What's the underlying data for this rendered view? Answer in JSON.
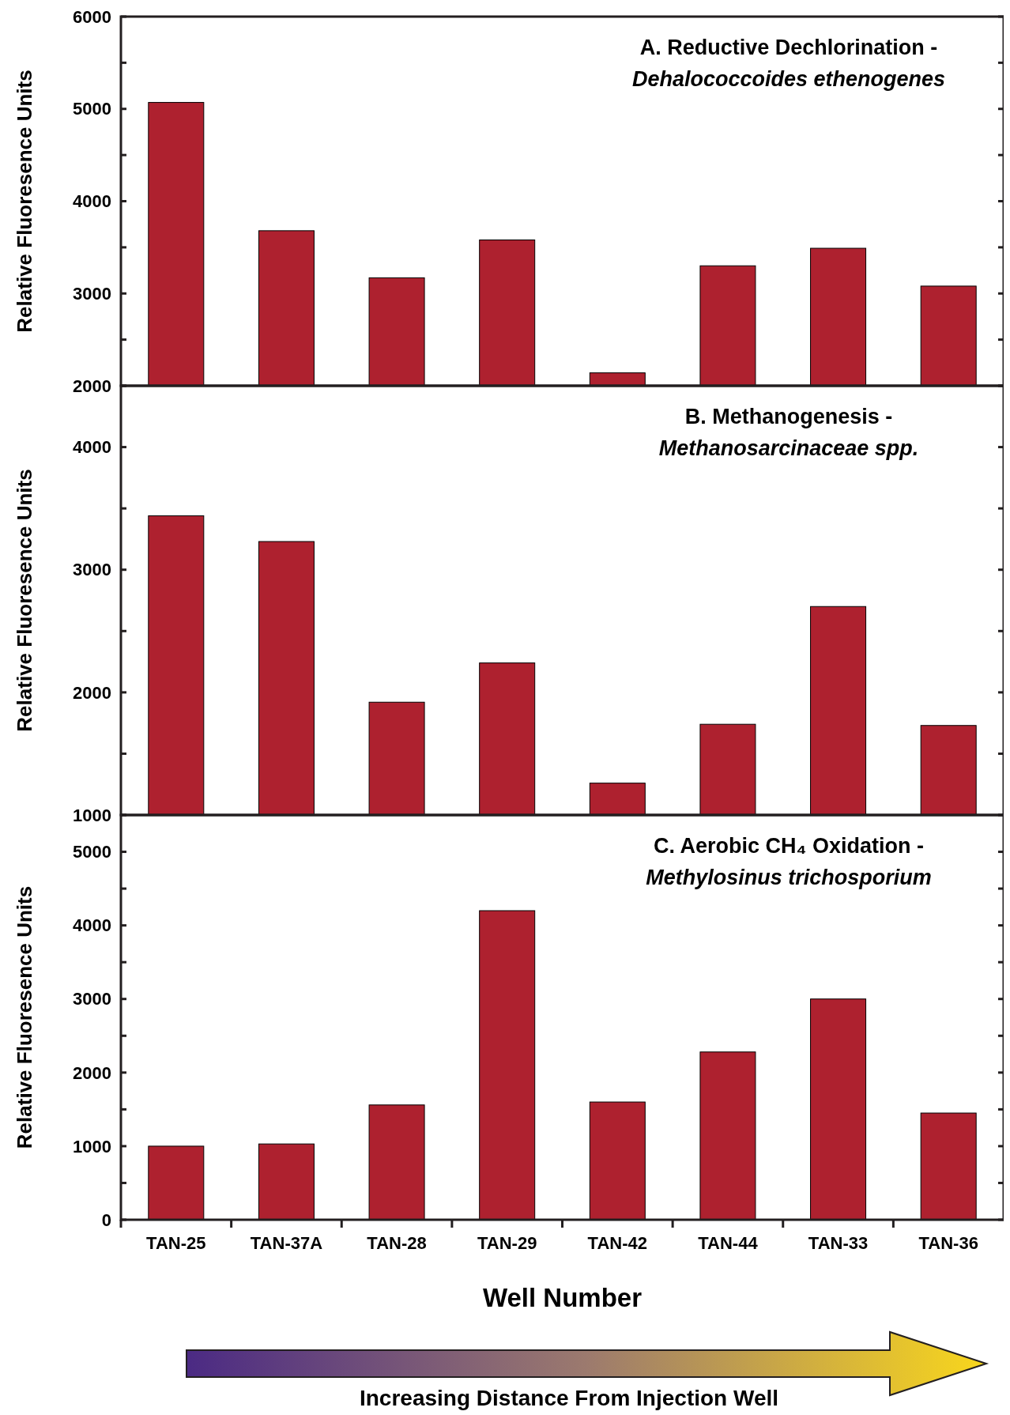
{
  "chart_data": [
    {
      "type": "bar",
      "title": "A. Reductive Dechlorination -",
      "subtitle": "Dehalococcoides ethenogenes",
      "ylabel": "Relative Fluoresence Units",
      "categories": [
        "TAN-25",
        "TAN-37A",
        "TAN-28",
        "TAN-29",
        "TAN-42",
        "TAN-44",
        "TAN-33",
        "TAN-36"
      ],
      "values": [
        5070,
        3680,
        3170,
        3580,
        2140,
        3300,
        3490,
        3080
      ],
      "color": "#ae212f",
      "ylim": [
        2000,
        6000
      ],
      "yticks": [
        2000,
        {
          "value": 2500,
          "label": null
        },
        3000,
        {
          "value": 3500,
          "label": null
        },
        4000,
        {
          "value": 4500,
          "label": null
        },
        5000,
        {
          "value": 5500,
          "label": null
        },
        6000
      ],
      "tick_labels": "y",
      "grid": false
    },
    {
      "type": "bar",
      "title": "B. Methanogenesis -",
      "subtitle": "Methanosarcinaceae spp.",
      "ylabel": "Relative Fluoresence Units",
      "categories": [
        "TAN-25",
        "TAN-37A",
        "TAN-28",
        "TAN-29",
        "TAN-42",
        "TAN-44",
        "TAN-33",
        "TAN-36"
      ],
      "values": [
        3440,
        3230,
        1920,
        2240,
        1260,
        1740,
        2700,
        1730
      ],
      "color": "#ae212f",
      "ylim": [
        1000,
        4500
      ],
      "yticks": [
        1000,
        {
          "value": 1500,
          "label": null
        },
        2000,
        {
          "value": 2500,
          "label": null
        },
        3000,
        {
          "value": 3500,
          "label": null
        },
        4000,
        {
          "value": 4500,
          "label": null
        }
      ],
      "tick_labels": "y",
      "grid": false
    },
    {
      "type": "bar",
      "title": "C. Aerobic CH₄ Oxidation -",
      "subtitle": "Methylosinus trichosporium",
      "ylabel": "Relative Fluoresence Units",
      "xlabel": "Well Number",
      "annotations": [
        "Increasing Distance From Injection Well"
      ],
      "categories": [
        "TAN-25",
        "TAN-37A",
        "TAN-28",
        "TAN-29",
        "TAN-42",
        "TAN-44",
        "TAN-33",
        "TAN-36"
      ],
      "values": [
        1000,
        1030,
        1560,
        4200,
        1600,
        2280,
        3000,
        1450
      ],
      "color": "#ae212f",
      "ylim": [
        0,
        5500
      ],
      "yticks": [
        0,
        {
          "value": 500,
          "label": null
        },
        1000,
        {
          "value": 1500,
          "label": null
        },
        2000,
        {
          "value": 2500,
          "label": null
        },
        3000,
        {
          "value": 3500,
          "label": null
        },
        4000,
        {
          "value": 4500,
          "label": null
        },
        5000,
        {
          "value": 5500,
          "label": null
        }
      ],
      "grid": false
    }
  ]
}
